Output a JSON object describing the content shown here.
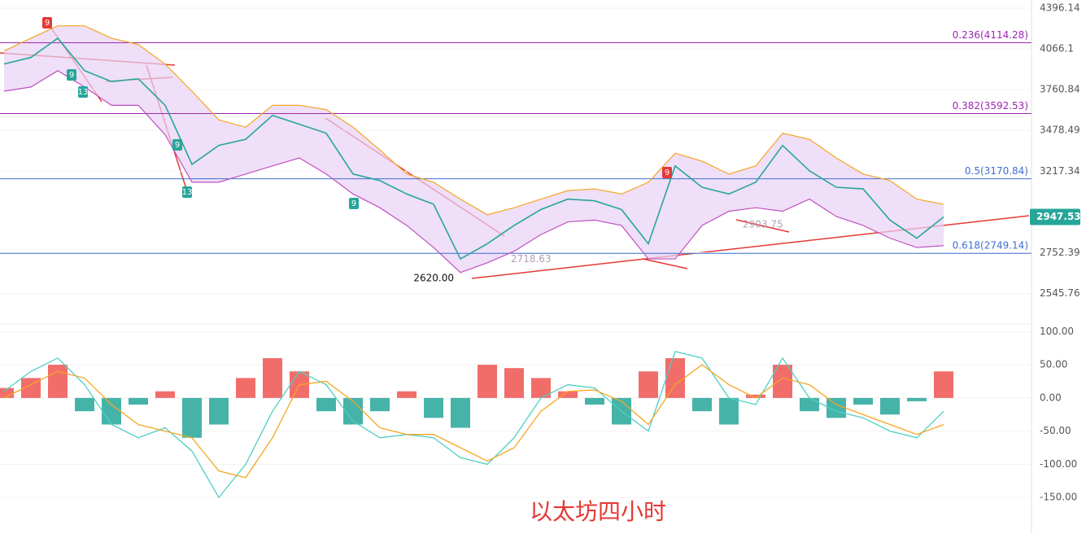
{
  "chart_data": [
    {
      "type": "line",
      "title": "以太坊四小时",
      "log_scale": true,
      "ylim": [
        2394,
        4465
      ],
      "yticks": [
        4396.14,
        4066.1,
        3760.84,
        3478.49,
        3217.34,
        2752.39,
        2545.76
      ],
      "series": [
        {
          "color": "#26a69a",
          "values": [
            3950,
            4000,
            4150,
            3900,
            3820,
            3840,
            3650,
            3260,
            3380,
            3420,
            3580,
            3520,
            3460,
            3200,
            3160,
            3080,
            3020,
            2720,
            2800,
            2900,
            2990,
            3050,
            3040,
            2990,
            2800,
            3250,
            3120,
            3080,
            3150,
            3380,
            3220,
            3120,
            3110,
            2930,
            2830,
            2947.53
          ]
        },
        {
          "color": "#f5a623",
          "values": [
            4050,
            4150,
            4250,
            4250,
            4150,
            4100,
            3950,
            3750,
            3550,
            3500,
            3650,
            3650,
            3620,
            3500,
            3350,
            3200,
            3150,
            3050,
            2960,
            3000,
            3050,
            3100,
            3110,
            3080,
            3150,
            3330,
            3280,
            3200,
            3250,
            3460,
            3420,
            3300,
            3200,
            3160,
            3050,
            3020
          ]
        },
        {
          "color": "#c050c0",
          "values": [
            3750,
            3780,
            3900,
            3780,
            3650,
            3650,
            3450,
            3150,
            3150,
            3200,
            3250,
            3300,
            3200,
            3080,
            3000,
            2900,
            2780,
            2650,
            2700,
            2760,
            2850,
            2920,
            2930,
            2900,
            2720,
            2720,
            2900,
            2980,
            3000,
            2980,
            3050,
            2950,
            2900,
            2830,
            2780,
            2790
          ]
        }
      ],
      "levels": [
        {
          "value": 4114.28,
          "label": "0.236(4114.28)",
          "color": "#9c27b0"
        },
        {
          "value": 3592.53,
          "label": "0.382(3592.53)",
          "color": "#9c27b0"
        },
        {
          "value": 3170.84,
          "label": "0.5(3170.84)",
          "color": "#3f6fd1"
        },
        {
          "value": 2749.14,
          "label": "0.618(2749.14)",
          "color": "#3f6fd1"
        }
      ],
      "annotations": [
        {
          "value": 2620,
          "label": "2620.00"
        },
        {
          "value": 2718.63,
          "label": "2718.63"
        },
        {
          "value": 2903.75,
          "label": "2903.75"
        }
      ],
      "markers": [
        "9",
        "9",
        "13",
        "9",
        "13",
        "9",
        "9"
      ]
    },
    {
      "type": "bar",
      "ylim": [
        -205,
        109
      ],
      "yticks": [
        {
          "value": 100,
          "label": "100.00"
        },
        {
          "value": 50,
          "label": "50.00"
        },
        {
          "value": 0,
          "label": "0.00"
        },
        {
          "value": -50,
          "label": "-50.00"
        },
        {
          "value": -100,
          "label": "-100.00"
        },
        {
          "value": -150,
          "label": "-150.00"
        }
      ],
      "up_color": "#ef5350",
      "down_color": "#26a69a",
      "values": [
        15,
        30,
        50,
        -20,
        -40,
        -10,
        10,
        -60,
        -40,
        30,
        60,
        40,
        -20,
        -40,
        -20,
        10,
        -30,
        -45,
        50,
        45,
        30,
        10,
        -10,
        -40,
        40,
        60,
        -20,
        -40,
        5,
        50,
        -20,
        -30,
        -10,
        -25,
        -5,
        40
      ],
      "series": [
        {
          "color": "#4dd0c4",
          "values": [
            10,
            40,
            60,
            20,
            -40,
            -60,
            -45,
            -80,
            -150,
            -100,
            -20,
            40,
            20,
            -35,
            -60,
            -55,
            -60,
            -90,
            -100,
            -60,
            0,
            20,
            15,
            -20,
            -50,
            70,
            60,
            0,
            -10,
            60,
            0,
            -20,
            -30,
            -50,
            -60,
            -20
          ]
        },
        {
          "color": "#f5a623",
          "values": [
            0,
            20,
            40,
            30,
            -10,
            -40,
            -50,
            -60,
            -110,
            -120,
            -60,
            20,
            25,
            -5,
            -45,
            -55,
            -55,
            -75,
            -95,
            -75,
            -20,
            10,
            12,
            -5,
            -40,
            20,
            50,
            20,
            0,
            30,
            20,
            -10,
            -25,
            -40,
            -55,
            -40
          ]
        }
      ]
    }
  ]
}
